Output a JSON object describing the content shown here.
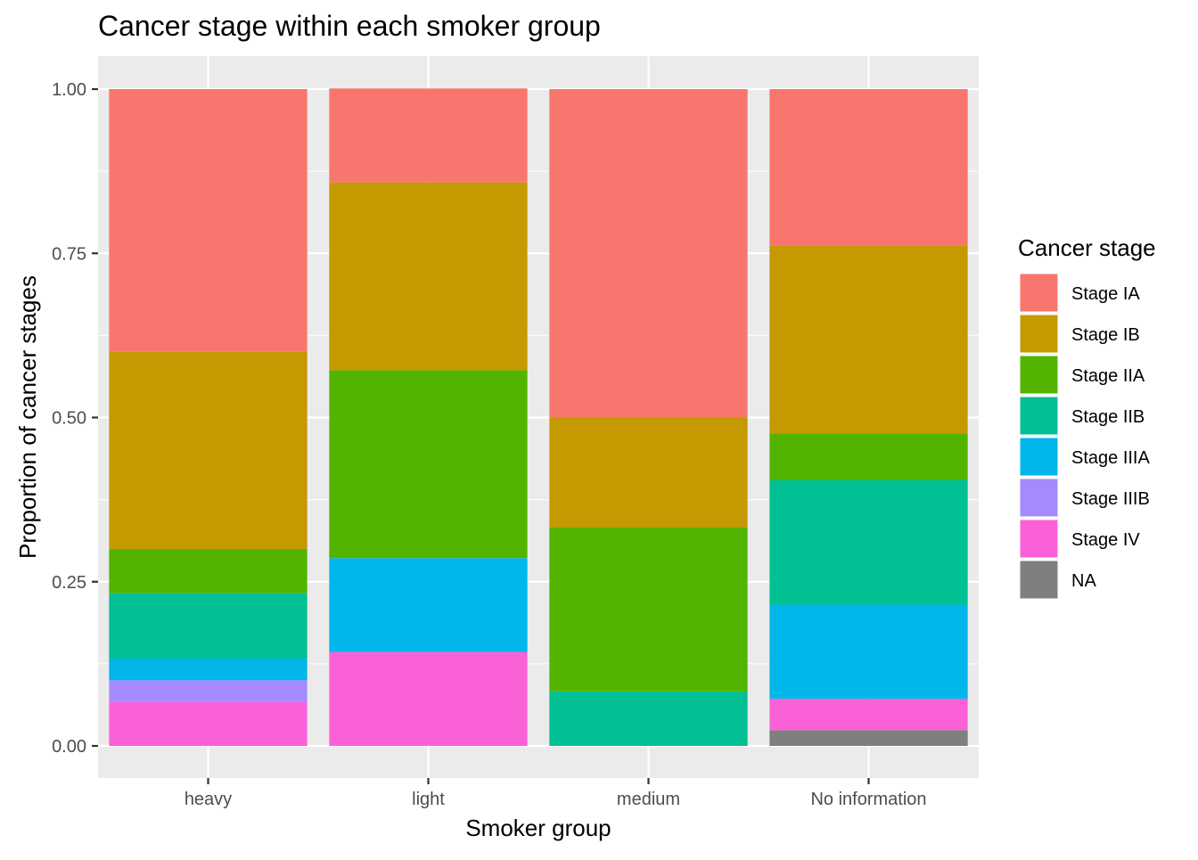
{
  "chart_data": {
    "type": "bar",
    "stacked": true,
    "title": "Cancer stage within each smoker group",
    "xlabel": "Smoker group",
    "ylabel": "Proportion of cancer stages",
    "ylim": [
      0,
      1
    ],
    "yticks": [
      0,
      0.25,
      0.5,
      0.75,
      1
    ],
    "ytick_labels": [
      "0.00",
      "0.25",
      "0.50",
      "0.75",
      "1.00"
    ],
    "categories": [
      "heavy",
      "light",
      "medium",
      "No information"
    ],
    "grid": true,
    "legend": {
      "title": "Cancer stage",
      "position": "right"
    },
    "series": [
      {
        "name": "Stage IA",
        "color": "#F8766D",
        "values": [
          0.4,
          0.143,
          0.5,
          0.238
        ]
      },
      {
        "name": "Stage IB",
        "color": "#C49A00",
        "values": [
          0.3,
          0.286,
          0.167,
          0.286
        ]
      },
      {
        "name": "Stage IIA",
        "color": "#53B400",
        "values": [
          0.067,
          0.286,
          0.25,
          0.071
        ]
      },
      {
        "name": "Stage IIB",
        "color": "#00C094",
        "values": [
          0.1,
          0.0,
          0.083,
          0.19
        ]
      },
      {
        "name": "Stage IIIA",
        "color": "#00B6EB",
        "values": [
          0.033,
          0.143,
          0.0,
          0.143
        ]
      },
      {
        "name": "Stage IIIB",
        "color": "#A58AFF",
        "values": [
          0.033,
          0.0,
          0.0,
          0.0
        ]
      },
      {
        "name": "Stage IV",
        "color": "#FB61D7",
        "values": [
          0.067,
          0.143,
          0.0,
          0.048
        ]
      },
      {
        "name": "NA",
        "color": "#7F7F7F",
        "values": [
          0.0,
          0.0,
          0.0,
          0.024
        ]
      }
    ]
  }
}
